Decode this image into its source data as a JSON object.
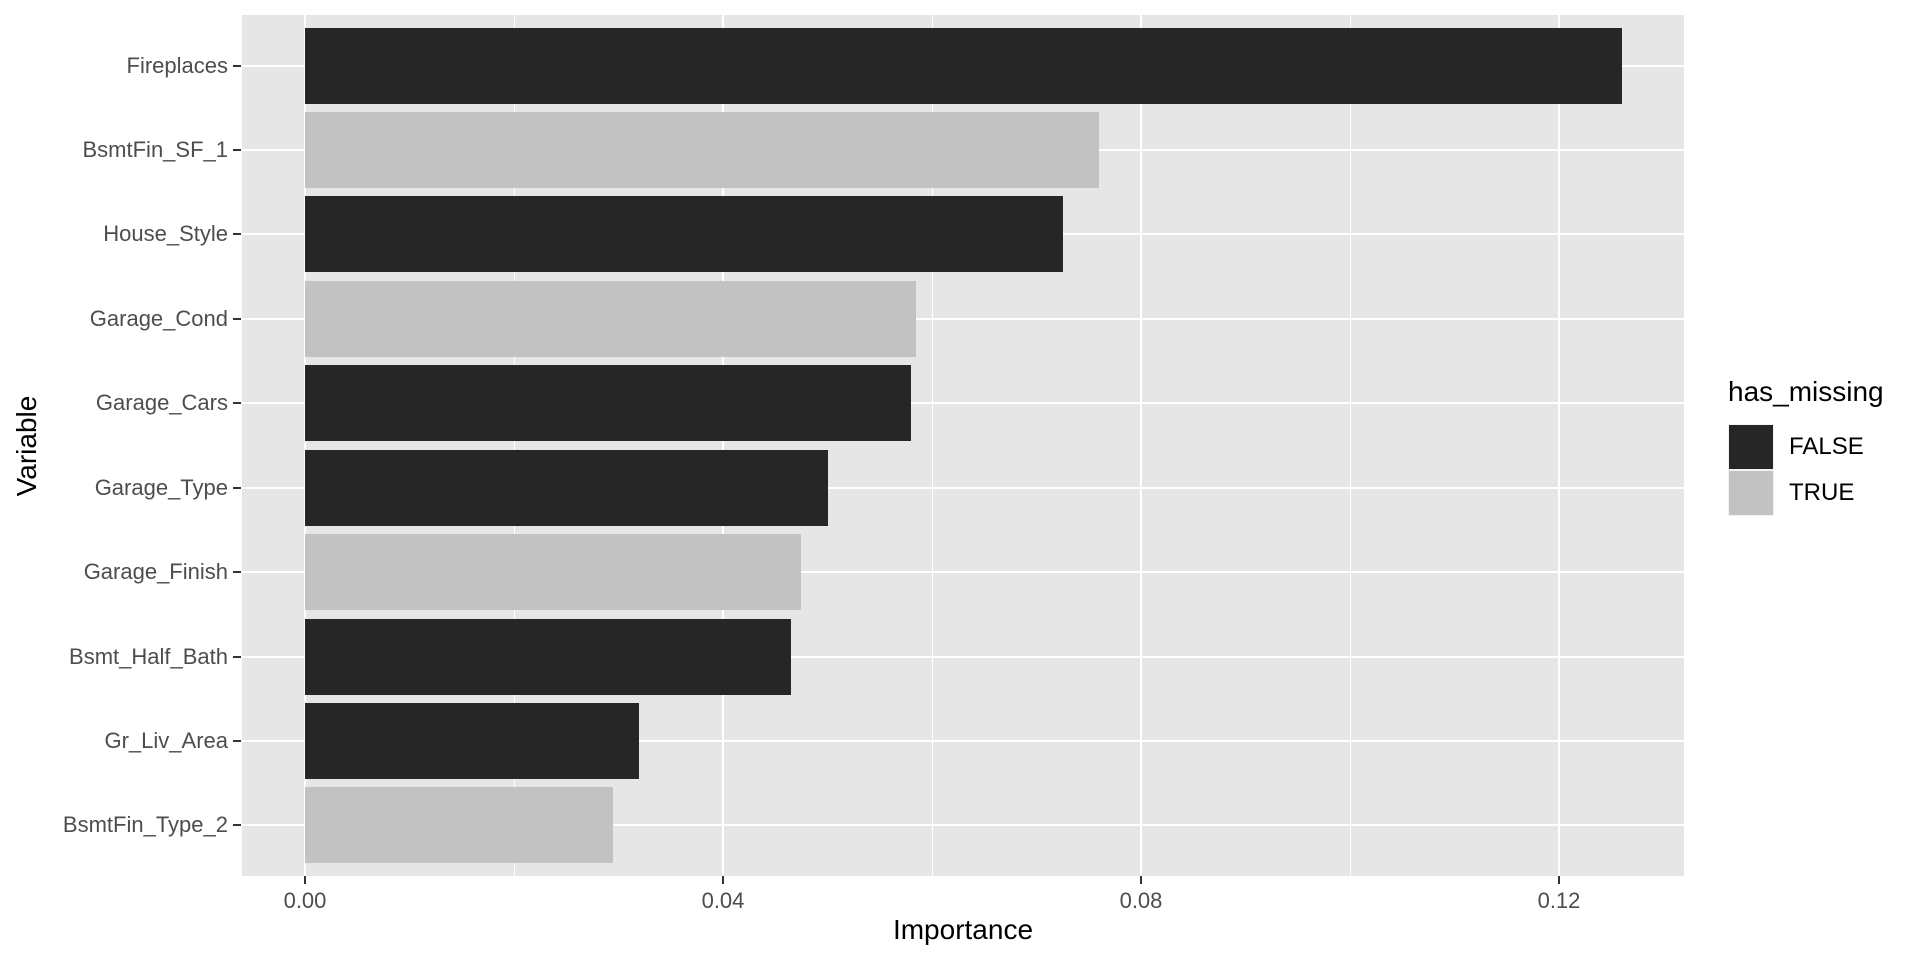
{
  "chart_data": {
    "type": "bar",
    "orientation": "horizontal",
    "xlabel": "Importance",
    "ylabel": "Variable",
    "xlim": [
      -0.0066,
      0.132
    ],
    "x_ticks": [
      0.0,
      0.04,
      0.08,
      0.12
    ],
    "x_tick_labels": [
      "0.00",
      "0.04",
      "0.08",
      "0.12"
    ],
    "x_minor_ticks": [
      0.02,
      0.06,
      0.1
    ],
    "grid": true,
    "categories": [
      "Fireplaces",
      "BsmtFin_SF_1",
      "House_Style",
      "Garage_Cond",
      "Garage_Cars",
      "Garage_Type",
      "Garage_Finish",
      "Bsmt_Half_Bath",
      "Gr_Liv_Area",
      "BsmtFin_Type_2"
    ],
    "bars": [
      {
        "variable": "Fireplaces",
        "importance": 0.126,
        "has_missing": "FALSE"
      },
      {
        "variable": "BsmtFin_SF_1",
        "importance": 0.076,
        "has_missing": "TRUE"
      },
      {
        "variable": "House_Style",
        "importance": 0.0725,
        "has_missing": "FALSE"
      },
      {
        "variable": "Garage_Cond",
        "importance": 0.0585,
        "has_missing": "TRUE"
      },
      {
        "variable": "Garage_Cars",
        "importance": 0.058,
        "has_missing": "FALSE"
      },
      {
        "variable": "Garage_Type",
        "importance": 0.05,
        "has_missing": "FALSE"
      },
      {
        "variable": "Garage_Finish",
        "importance": 0.0475,
        "has_missing": "TRUE"
      },
      {
        "variable": "Bsmt_Half_Bath",
        "importance": 0.0465,
        "has_missing": "FALSE"
      },
      {
        "variable": "Gr_Liv_Area",
        "importance": 0.032,
        "has_missing": "FALSE"
      },
      {
        "variable": "BsmtFin_Type_2",
        "importance": 0.0295,
        "has_missing": "TRUE"
      }
    ],
    "legend": {
      "title": "has_missing",
      "position": "right",
      "entries": [
        {
          "label": "FALSE",
          "color": "#262626"
        },
        {
          "label": "TRUE",
          "color": "#C2C2C2"
        }
      ]
    },
    "colors": {
      "bar_false": "#262626",
      "bar_true": "#C2C2C2",
      "panel_background": "#E6E6E6",
      "gridline": "#FFFFFF",
      "axis_text": "#4D4D4D",
      "tick_mark": "#333333",
      "title_text": "#000000",
      "legend_key_background": "#F2F2F2"
    }
  }
}
